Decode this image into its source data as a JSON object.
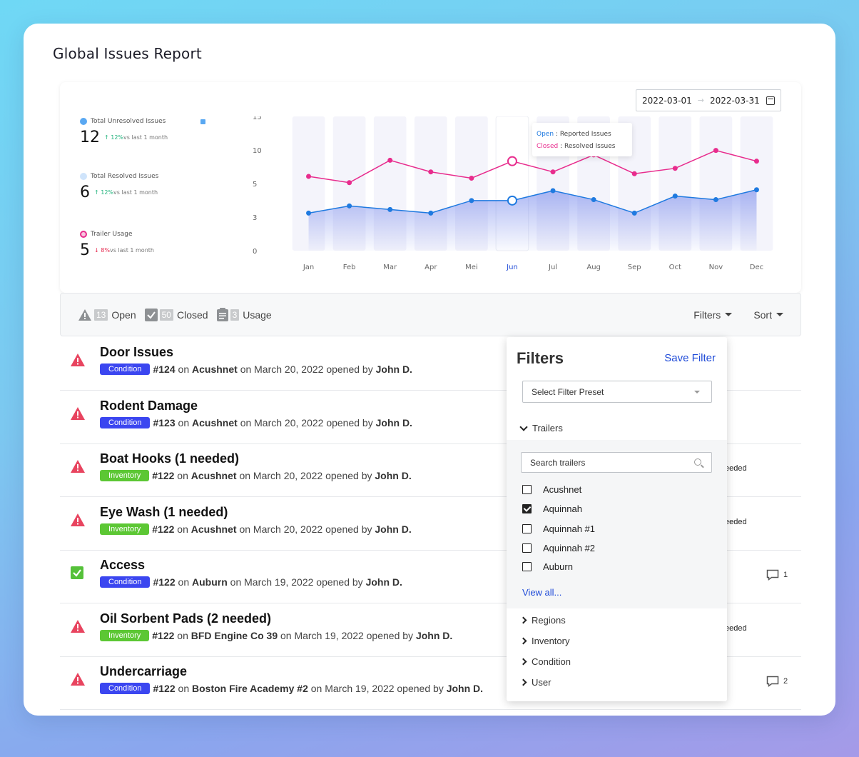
{
  "page": {
    "title": "Global Issues Report"
  },
  "date_range": {
    "start": "2022-03-01",
    "end": "2022-03-31",
    "separator": "→"
  },
  "stats": [
    {
      "label": "Total Unresolved Issues",
      "value": "12",
      "direction": "up",
      "change": "12%",
      "suffix": "vs last 1 month",
      "icon_color": "#59a8f2"
    },
    {
      "label": "Total Resolved Issues",
      "value": "6",
      "direction": "up",
      "change": "12%",
      "suffix": "vs last 1 month",
      "icon_color": "#cfe4fb"
    },
    {
      "label": "Trailer Usage",
      "value": "5",
      "direction": "down",
      "change": "8%",
      "suffix": "vs last 1 month",
      "icon_color": "#e82c8d"
    }
  ],
  "chart_data": {
    "type": "line",
    "categories": [
      "Jan",
      "Feb",
      "Mar",
      "Apr",
      "Mei",
      "Jun",
      "Jul",
      "Aug",
      "Sep",
      "Oct",
      "Nov",
      "Dec"
    ],
    "y_ticks": [
      "0",
      "3",
      "5",
      "10",
      "15"
    ],
    "series": [
      {
        "name": "Open",
        "color": "#1f7ae0",
        "values": [
          4.2,
          5.0,
          4.6,
          4.2,
          5.6,
          5.6,
          6.7,
          5.7,
          4.2,
          6.1,
          5.7,
          6.8
        ]
      },
      {
        "name": "Closed",
        "color": "#e82c8d",
        "values": [
          8.3,
          7.6,
          10.1,
          8.8,
          8.1,
          10.0,
          8.8,
          10.7,
          8.6,
          9.2,
          11.2,
          10.0
        ]
      }
    ],
    "highlight": "Jun",
    "tooltip": {
      "open_key": "Open",
      "open_text": ": Reported Issues",
      "closed_key": "Closed",
      "closed_text": ": Resolved Issues"
    },
    "grid": false
  },
  "toolbar": {
    "open_count": "13",
    "open_label": "Open",
    "closed_count": "50",
    "closed_label": "Closed",
    "usage_count": "3",
    "usage_label": "Usage",
    "filters_label": "Filters",
    "sort_label": "Sort"
  },
  "issues": [
    {
      "title": "Door Issues",
      "tag": "Condition",
      "tag_type": "condition",
      "number": "#124",
      "on": "on",
      "trailer": "Acushnet",
      "date_text": "on March 20, 2022 opened by",
      "user": "John D.",
      "status": "warning",
      "right_note": "",
      "comments": ""
    },
    {
      "title": "Rodent Damage",
      "tag": "Condition",
      "tag_type": "condition",
      "number": "#123",
      "on": "on",
      "trailer": "Acushnet",
      "date_text": "on March 20, 2022 opened by",
      "user": "John D.",
      "status": "warning",
      "right_note": "",
      "comments": ""
    },
    {
      "title": "Boat Hooks (1 needed)",
      "tag": "Inventory",
      "tag_type": "inventory",
      "number": "#122",
      "on": "on",
      "trailer": "Acushnet",
      "date_text": "on March 20, 2022 opened by",
      "user": "John D.",
      "status": "warning",
      "right_note": "eeded",
      "comments": ""
    },
    {
      "title": "Eye Wash (1 needed)",
      "tag": "Inventory",
      "tag_type": "inventory",
      "number": "#122",
      "on": "on",
      "trailer": "Acushnet",
      "date_text": "on March 20, 2022 opened by",
      "user": "John D.",
      "status": "warning",
      "right_note": "eeded",
      "comments": ""
    },
    {
      "title": "Access",
      "tag": "Condition",
      "tag_type": "condition",
      "number": "#122",
      "on": "on",
      "trailer": "Auburn",
      "date_text": "on March 19, 2022 opened by",
      "user": "John D.",
      "status": "resolved",
      "right_note": "",
      "comments": "1"
    },
    {
      "title": "Oil Sorbent Pads (2 needed)",
      "tag": "Inventory",
      "tag_type": "inventory",
      "number": "#122",
      "on": "on",
      "trailer": "BFD Engine Co 39",
      "date_text": "on March 19, 2022 opened by",
      "user": "John D.",
      "status": "warning",
      "right_note": "eeded",
      "comments": ""
    },
    {
      "title": "Undercarriage",
      "tag": "Condition",
      "tag_type": "condition",
      "number": "#122",
      "on": "on",
      "trailer": "Boston Fire Academy #2",
      "date_text": "on March 19, 2022 opened by",
      "user": "John D.",
      "status": "warning",
      "right_note": "",
      "comments": "2"
    }
  ],
  "filters": {
    "title": "Filters",
    "save_label": "Save Filter",
    "preset_placeholder": "Select Filter Preset",
    "trailers_label": "Trailers",
    "search_placeholder": "Search trailers",
    "trailers": [
      {
        "name": "Acushnet",
        "checked": false
      },
      {
        "name": "Aquinnah",
        "checked": true
      },
      {
        "name": "Aquinnah #1",
        "checked": false
      },
      {
        "name": "Aquinnah #2",
        "checked": false
      },
      {
        "name": "Auburn",
        "checked": false
      }
    ],
    "view_all": "View all...",
    "groups": [
      "Regions",
      "Inventory",
      "Condition",
      "User"
    ]
  },
  "colors": {
    "open": "#1f7ae0",
    "closed": "#e82c8d",
    "warning": "#e8445f",
    "resolved": "#55c13a",
    "link": "#1f4bd8"
  }
}
